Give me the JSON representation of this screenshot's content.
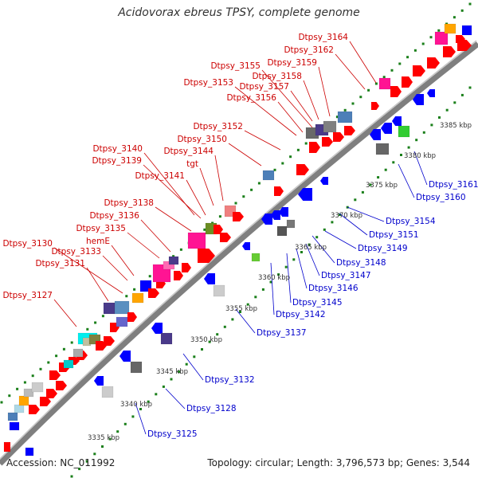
{
  "title": "Acidovorax ebreus TPSY, complete genome",
  "footer": {
    "accession": "Accession: NC_011992",
    "summary": "Topology: circular; Length: 3,796,573 bp; Genes: 3,544"
  },
  "colors": {
    "backbone": "#7f7f7f",
    "forward_gene": "#ff0000",
    "reverse_gene": "#0000ff",
    "dotted_track": "#1a7f1a",
    "label_forward": "#cc0000",
    "label_reverse": "#0000cc",
    "kbp_text": "#333333"
  },
  "kbp_ticks": [
    "3335 kbp",
    "3340 kbp",
    "3345 kbp",
    "3350 kbp",
    "3355 kbp",
    "3360 kbp",
    "3365 kbp",
    "3370 kbp",
    "3375 kbp",
    "3380 kbp",
    "3385 kbp"
  ],
  "forward_labels": [
    "Dtpsy_3164",
    "Dtpsy_3162",
    "Dtpsy_3159",
    "Dtpsy_3155",
    "Dtpsy_3158",
    "Dtpsy_3153",
    "Dtpsy_3157",
    "Dtpsy_3156",
    "Dtpsy_3152",
    "Dtpsy_3150",
    "Dtpsy_3140",
    "Dtpsy_3144",
    "Dtpsy_3139",
    "tgt",
    "Dtpsy_3141",
    "Dtpsy_3138",
    "Dtpsy_3136",
    "Dtpsy_3135",
    "hemE",
    "Dtpsy_3130",
    "Dtpsy_3133",
    "Dtpsy_3131",
    "Dtpsy_3127"
  ],
  "reverse_labels": [
    "Dtpsy_3161",
    "Dtpsy_3160",
    "Dtpsy_3154",
    "Dtpsy_3151",
    "Dtpsy_3149",
    "Dtpsy_3148",
    "Dtpsy_3147",
    "Dtpsy_3146",
    "Dtpsy_3145",
    "Dtpsy_3142",
    "Dtpsy_3137",
    "Dtpsy_3132",
    "Dtpsy_3128",
    "Dtpsy_3125"
  ]
}
